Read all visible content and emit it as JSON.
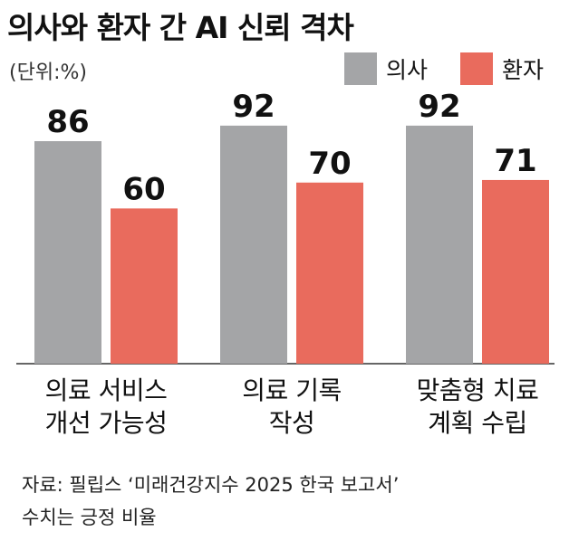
{
  "title": "의사와 환자 간 AI 신뢰 격차",
  "unit_label": "(단위:%)",
  "colors": {
    "doctor": "#a4a5a7",
    "patient": "#e96b5d",
    "axis": "#333333"
  },
  "chart_data": {
    "type": "bar",
    "categories": [
      [
        "의료 서비스",
        "개선 가능성"
      ],
      [
        "의료 기록",
        "작성"
      ],
      [
        "맞춤형 치료",
        "계획 수립"
      ]
    ],
    "series": [
      {
        "name": "의사",
        "values": [
          86,
          92,
          92
        ]
      },
      {
        "name": "환자",
        "values": [
          60,
          70,
          71
        ]
      }
    ],
    "ylim": [
      0,
      100
    ],
    "legend_position": "top-right"
  },
  "footer": {
    "source": "자료: 필립스 ‘미래건강지수 2025 한국 보고서’",
    "note": "수치는 긍정 비율"
  }
}
